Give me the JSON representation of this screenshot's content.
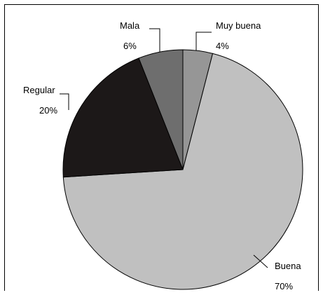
{
  "chart_data": {
    "type": "pie",
    "title": "",
    "start_angle_deg": 0,
    "direction": "clockwise",
    "slices": [
      {
        "label": "Muy buena",
        "value": 4,
        "value_label": "4%",
        "color": "#969696"
      },
      {
        "label": "Buena",
        "value": 70,
        "value_label": "70%",
        "color": "#c0c0c0"
      },
      {
        "label": "Regular",
        "value": 20,
        "value_label": "20%",
        "color": "#1c1818"
      },
      {
        "label": "Mala",
        "value": 6,
        "value_label": "6%",
        "color": "#6e6e6e"
      }
    ],
    "legend": "none"
  }
}
